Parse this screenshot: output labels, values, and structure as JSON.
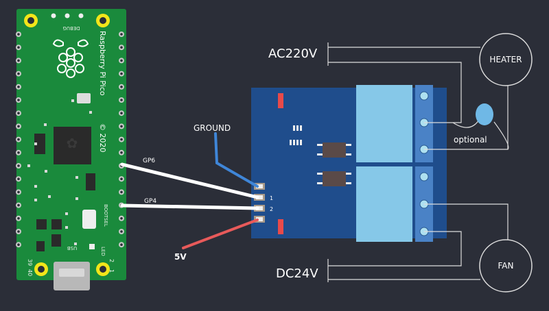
{
  "board": {
    "name": "Raspberry Pi Pico",
    "year_mark": "© 2020",
    "debug_label": "DEBUG",
    "bootsel_label": "BOOTSEL",
    "usb_label": "USB",
    "led_label": "LED",
    "pin_1": "1",
    "pin_2": "2",
    "pin_39": "39",
    "pin_40": "40"
  },
  "wires": {
    "gp6": "GP6",
    "gp4": "GP4",
    "ground": "GROUND",
    "v5": "5V"
  },
  "relay": {
    "in1": "1",
    "in2": "2"
  },
  "loads": {
    "ac_supply": "AC220V",
    "dc_supply": "DC24V",
    "heater": "HEATER",
    "fan": "FAN",
    "optional": "optional"
  },
  "colors": {
    "background": "#2b2e38",
    "pcb": "#1a8a3c",
    "relay_board": "#1f4d8c",
    "relay_block": "#86c8e8",
    "terminal": "#4a82c6",
    "ground_wire": "#3f86d8",
    "power_wire": "#e85a5a"
  }
}
